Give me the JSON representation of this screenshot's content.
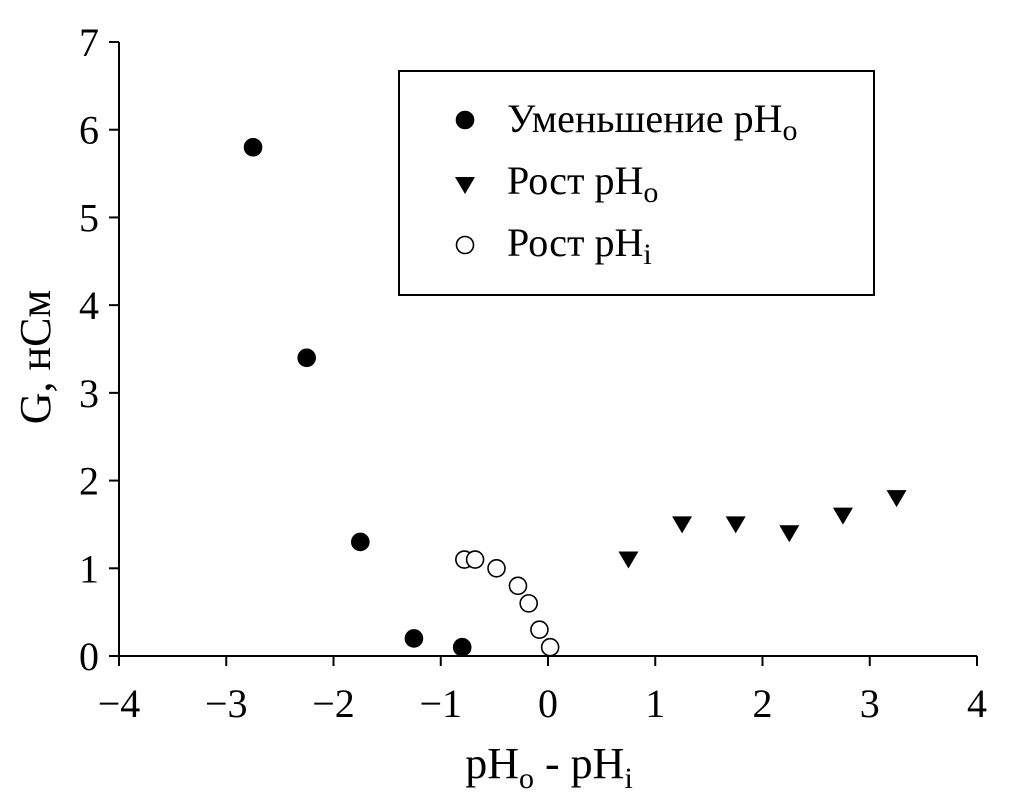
{
  "chart_data": {
    "type": "scatter",
    "xlabel": {
      "base1": "pH",
      "sub1": "o",
      "mid": " - pH",
      "sub2": "i"
    },
    "ylabel": "G, нСм",
    "xlim": [
      -4,
      4
    ],
    "ylim": [
      0,
      7
    ],
    "xticks": [
      -4,
      -3,
      -2,
      -1,
      0,
      1,
      2,
      3,
      4
    ],
    "xtick_labels": [
      "−4",
      "−3",
      "−2",
      "−1",
      "0",
      "1",
      "2",
      "3",
      "4"
    ],
    "yticks": [
      0,
      1,
      2,
      3,
      4,
      5,
      6,
      7
    ],
    "ytick_labels": [
      "0",
      "1",
      "2",
      "3",
      "4",
      "5",
      "6",
      "7"
    ],
    "grid": false,
    "legend_position": "top-right",
    "series": [
      {
        "name": "Уменьшение pHo",
        "legend": {
          "text": "Уменьшение pH",
          "sub": "o"
        },
        "marker": "filled-circle",
        "color": "#000000",
        "x": [
          -2.75,
          -2.25,
          -1.75,
          -1.25,
          -0.8
        ],
        "y": [
          5.8,
          3.4,
          1.3,
          0.2,
          0.1
        ]
      },
      {
        "name": "Рост pHo",
        "legend": {
          "text": "Рост pH",
          "sub": "o"
        },
        "marker": "filled-triangle-down",
        "color": "#000000",
        "x": [
          0.75,
          1.25,
          1.75,
          2.25,
          2.75,
          3.25
        ],
        "y": [
          1.1,
          1.5,
          1.5,
          1.4,
          1.6,
          1.8
        ]
      },
      {
        "name": "Рост pHi",
        "legend": {
          "text": "Рост pH",
          "sub": "i"
        },
        "marker": "open-circle",
        "color": "#000000",
        "x": [
          -0.78,
          -0.68,
          -0.48,
          -0.28,
          -0.18,
          -0.08,
          0.02
        ],
        "y": [
          1.1,
          1.1,
          1.0,
          0.8,
          0.6,
          0.3,
          0.1
        ]
      }
    ]
  }
}
